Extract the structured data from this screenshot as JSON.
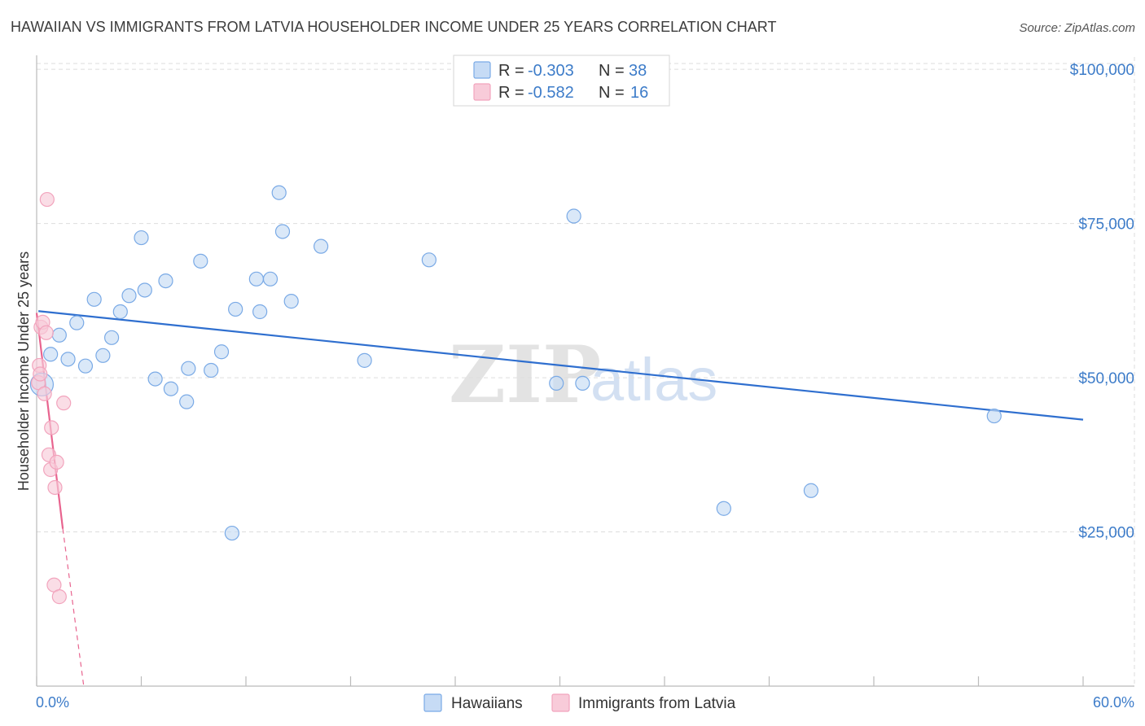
{
  "chart_data": {
    "type": "scatter",
    "title": "HAWAIIAN VS IMMIGRANTS FROM LATVIA HOUSEHOLDER INCOME UNDER 25 YEARS CORRELATION CHART",
    "source": "Source: ZipAtlas.com",
    "ylabel": "Householder Income Under 25 years",
    "xlabel": "",
    "xlim": [
      0,
      60
    ],
    "ylim": [
      0,
      102000
    ],
    "x_tick_labels": {
      "left": "0.0%",
      "right": "60.0%"
    },
    "y_ticks": [
      {
        "value": 25000,
        "label": "$25,000"
      },
      {
        "value": 50000,
        "label": "$50,000"
      },
      {
        "value": 75000,
        "label": "$75,000"
      },
      {
        "value": 100000,
        "label": "$100,000"
      }
    ],
    "watermark": {
      "part1": "ZIP",
      "part2": "atlas"
    },
    "legend": {
      "rows": [
        {
          "r_label": "R =",
          "r_value": "-0.303",
          "n_label": "N =",
          "n_value": "38"
        },
        {
          "r_label": "R =",
          "r_value": "-0.582",
          "n_label": "N =",
          "n_value": "16"
        }
      ]
    },
    "series": [
      {
        "name": "Hawaiians",
        "color": "#7aaae6",
        "fill": "#c6dbf5",
        "line_color": "#2f6fcf",
        "trend": {
          "x0": 0.1,
          "y0": 60800,
          "x1": 60,
          "y1": 43200
        },
        "points": [
          [
            0.3,
            48900
          ],
          [
            0.8,
            53800
          ],
          [
            1.3,
            56900
          ],
          [
            1.8,
            53000
          ],
          [
            2.3,
            58900
          ],
          [
            2.8,
            51900
          ],
          [
            3.3,
            62700
          ],
          [
            3.8,
            53600
          ],
          [
            4.3,
            56500
          ],
          [
            4.8,
            60700
          ],
          [
            5.3,
            63300
          ],
          [
            6.0,
            72700
          ],
          [
            6.2,
            64200
          ],
          [
            6.8,
            49800
          ],
          [
            7.4,
            65700
          ],
          [
            7.7,
            48200
          ],
          [
            8.6,
            46100
          ],
          [
            8.7,
            51500
          ],
          [
            9.4,
            68900
          ],
          [
            10.0,
            51200
          ],
          [
            10.6,
            54200
          ],
          [
            11.4,
            61100
          ],
          [
            11.2,
            24800
          ],
          [
            12.6,
            66000
          ],
          [
            12.8,
            60700
          ],
          [
            13.4,
            66000
          ],
          [
            13.9,
            80000
          ],
          [
            14.1,
            73700
          ],
          [
            14.6,
            62400
          ],
          [
            16.3,
            71300
          ],
          [
            18.8,
            52800
          ],
          [
            22.5,
            69100
          ],
          [
            29.8,
            49100
          ],
          [
            30.8,
            76200
          ],
          [
            31.3,
            49100
          ],
          [
            39.4,
            28800
          ],
          [
            44.4,
            31700
          ],
          [
            54.9,
            43800
          ]
        ]
      },
      {
        "name": "Immigrants from Latvia",
        "color": "#f2a4bd",
        "fill": "#f8cbd9",
        "line_color": "#e8648f",
        "trend": {
          "x0": 0,
          "y0": 60500,
          "x1": 1.5,
          "y1": 25500
        },
        "trend_dashed": {
          "x0": 1.5,
          "y0": 25500,
          "x1": 2.7,
          "y1": 0
        },
        "points": [
          [
            0.1,
            49200
          ],
          [
            0.15,
            52000
          ],
          [
            0.25,
            58200
          ],
          [
            0.35,
            59000
          ],
          [
            0.45,
            47400
          ],
          [
            0.55,
            57300
          ],
          [
            0.6,
            78900
          ],
          [
            0.7,
            37500
          ],
          [
            0.8,
            35100
          ],
          [
            0.85,
            41900
          ],
          [
            1.0,
            16400
          ],
          [
            1.05,
            32200
          ],
          [
            1.15,
            36300
          ],
          [
            1.3,
            14500
          ],
          [
            1.55,
            45900
          ],
          [
            0.2,
            50600
          ]
        ]
      }
    ]
  }
}
